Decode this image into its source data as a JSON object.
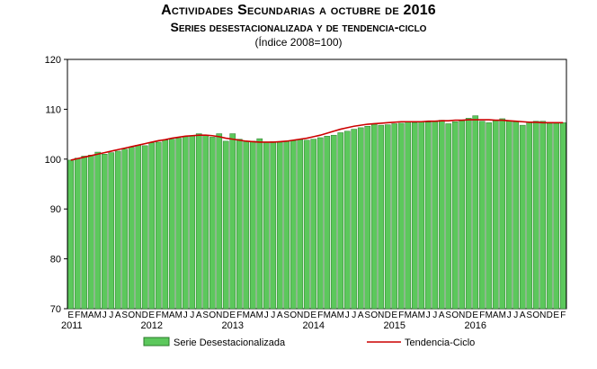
{
  "header": {
    "title": "Actividades Secundarias a octubre de 2016",
    "subtitle": "Series desestacionalizada y de tendencia-ciclo",
    "index_note": "(Índice 2008=100)"
  },
  "colors": {
    "bar_fill": "#5cc85c",
    "bar_stroke": "#2a7a2a",
    "trend_line": "#cc0000",
    "axis": "#000000"
  },
  "chart_data": {
    "type": "bar",
    "title": "Actividades Secundarias a octubre de 2016",
    "ylabel": "Índice 2008=100",
    "ylim": [
      70,
      120
    ],
    "yticks": [
      "70",
      "80",
      "90",
      "100",
      "110",
      "120"
    ],
    "month_labels": [
      "E",
      "F",
      "M",
      "A",
      "M",
      "J",
      "J",
      "A",
      "S",
      "O",
      "N",
      "D"
    ],
    "year_labels": [
      {
        "label": "2011",
        "month_index": 0
      },
      {
        "label": "2012",
        "month_index": 12
      },
      {
        "label": "2013",
        "month_index": 24
      },
      {
        "label": "2014",
        "month_index": 36
      },
      {
        "label": "2015",
        "month_index": 48
      },
      {
        "label": "2016",
        "month_index": 60
      }
    ],
    "series": [
      {
        "name": "Serie Desestacionalizada",
        "type": "bar",
        "values": [
          99.8,
          100.2,
          100.6,
          100.8,
          101.4,
          101.0,
          101.3,
          101.6,
          102.0,
          102.4,
          102.8,
          102.7,
          103.3,
          103.4,
          103.8,
          104.0,
          104.2,
          104.5,
          104.7,
          105.1,
          104.8,
          104.4,
          105.1,
          103.6,
          105.1,
          104.0,
          103.6,
          103.6,
          104.1,
          103.4,
          103.5,
          103.4,
          103.6,
          103.7,
          103.9,
          103.8,
          104.0,
          104.3,
          104.6,
          104.8,
          105.3,
          105.6,
          106.0,
          106.3,
          106.6,
          107.0,
          106.8,
          106.9,
          107.1,
          107.2,
          107.4,
          107.3,
          107.5,
          107.4,
          107.5,
          107.8,
          107.1,
          107.5,
          107.7,
          108.2,
          108.7,
          107.6,
          107.3,
          107.7,
          108.1,
          107.6,
          107.5,
          106.8,
          107.4,
          107.6,
          107.6,
          107.2,
          107.2,
          107.3
        ]
      },
      {
        "name": "Tendencia-Ciclo",
        "type": "line",
        "values": [
          99.8,
          100.1,
          100.4,
          100.7,
          101.0,
          101.3,
          101.6,
          101.9,
          102.2,
          102.5,
          102.8,
          103.1,
          103.4,
          103.7,
          103.9,
          104.2,
          104.4,
          104.6,
          104.7,
          104.8,
          104.8,
          104.7,
          104.5,
          104.2,
          104.0,
          103.8,
          103.6,
          103.5,
          103.4,
          103.4,
          103.4,
          103.5,
          103.6,
          103.8,
          104.0,
          104.2,
          104.5,
          104.8,
          105.2,
          105.6,
          106.0,
          106.3,
          106.6,
          106.8,
          107.0,
          107.1,
          107.2,
          107.3,
          107.4,
          107.5,
          107.5,
          107.5,
          107.5,
          107.6,
          107.6,
          107.7,
          107.7,
          107.8,
          107.8,
          107.9,
          107.9,
          107.9,
          107.9,
          107.8,
          107.8,
          107.7,
          107.6,
          107.5,
          107.4,
          107.4,
          107.3,
          107.3,
          107.3,
          107.3
        ]
      }
    ],
    "legend": {
      "placement": "bottom",
      "bar_label": "Serie Desestacionalizada",
      "line_label": "Tendencia-Ciclo"
    }
  }
}
